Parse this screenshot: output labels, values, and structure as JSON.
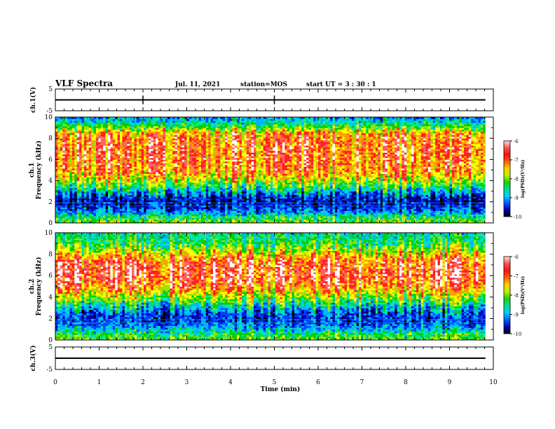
{
  "header": {
    "title": "VLF Spectra",
    "date": "Jul. 11, 2021",
    "station": "station=MOS",
    "start": "start  UT =  3 : 30 : 1"
  },
  "colors": {
    "spec_stops": [
      "#000000",
      "#0000a8",
      "#0040ff",
      "#00b4ff",
      "#00e8b0",
      "#00d000",
      "#a0e000",
      "#ffff00",
      "#ffa000",
      "#ff2020",
      "#ff6060",
      "#ffffff"
    ]
  },
  "chart_data": [
    {
      "type": "line",
      "panel": "ch1-waveform",
      "ylabel": "ch.1(V)",
      "ylim": [
        -5,
        5
      ],
      "yticks": [
        "5",
        "-5"
      ],
      "xlim": [
        0,
        10
      ],
      "trace_level": 0
    },
    {
      "type": "heatmap",
      "panel": "ch1-spectrogram",
      "ylabel": "ch.1 Frequency (kHz)",
      "ylim": [
        0,
        10
      ],
      "yticks": [
        "0",
        "2",
        "4",
        "6",
        "8",
        "10"
      ],
      "xlim": [
        0,
        10
      ],
      "colorbar": {
        "label": "log(PSD)(V²/Hz)",
        "range": [
          -10,
          -6
        ],
        "ticks": [
          "-6",
          "-7",
          "-8",
          "-9",
          "-10"
        ]
      },
      "profile": {
        "freqs": [
          0,
          0.5,
          1,
          1.5,
          2,
          2.5,
          3,
          3.5,
          4,
          4.5,
          5,
          5.5,
          6,
          6.5,
          7,
          7.5,
          8,
          8.5,
          9,
          9.5,
          10
        ],
        "level": [
          0.55,
          0.5,
          0.3,
          0.2,
          0.15,
          0.2,
          0.35,
          0.5,
          0.62,
          0.72,
          0.8,
          0.82,
          0.83,
          0.83,
          0.84,
          0.84,
          0.82,
          0.78,
          0.55,
          0.4,
          0.3
        ]
      }
    },
    {
      "type": "heatmap",
      "panel": "ch2-spectrogram",
      "ylabel": "ch.2 Frequency (kHz)",
      "ylim": [
        0,
        10
      ],
      "yticks": [
        "0",
        "2",
        "4",
        "6",
        "8",
        "10"
      ],
      "xlim": [
        0,
        10
      ],
      "colorbar": {
        "label": "log(PSD)(V²/Hz)",
        "range": [
          -10,
          -6
        ],
        "ticks": [
          "-6",
          "-7",
          "-8",
          "-9",
          "-10"
        ]
      },
      "profile": {
        "freqs": [
          0,
          0.5,
          1,
          1.5,
          2,
          2.5,
          3,
          3.5,
          4,
          4.5,
          5,
          5.5,
          6,
          6.5,
          7,
          7.5,
          8,
          8.5,
          9,
          9.5,
          10
        ],
        "level": [
          0.55,
          0.5,
          0.35,
          0.25,
          0.2,
          0.25,
          0.35,
          0.48,
          0.6,
          0.72,
          0.82,
          0.88,
          0.9,
          0.9,
          0.88,
          0.84,
          0.72,
          0.6,
          0.5,
          0.45,
          0.42
        ]
      }
    },
    {
      "type": "line",
      "panel": "ch3-waveform",
      "ylabel": "ch.3(V)",
      "ylim": [
        -5,
        5
      ],
      "yticks": [
        "5",
        "-5"
      ],
      "xlim": [
        0,
        10
      ],
      "trace_level": 0
    }
  ],
  "xaxis": {
    "label": "Time (min)",
    "ticks": [
      "0",
      "1",
      "2",
      "3",
      "4",
      "5",
      "6",
      "7",
      "8",
      "9",
      "10"
    ]
  }
}
